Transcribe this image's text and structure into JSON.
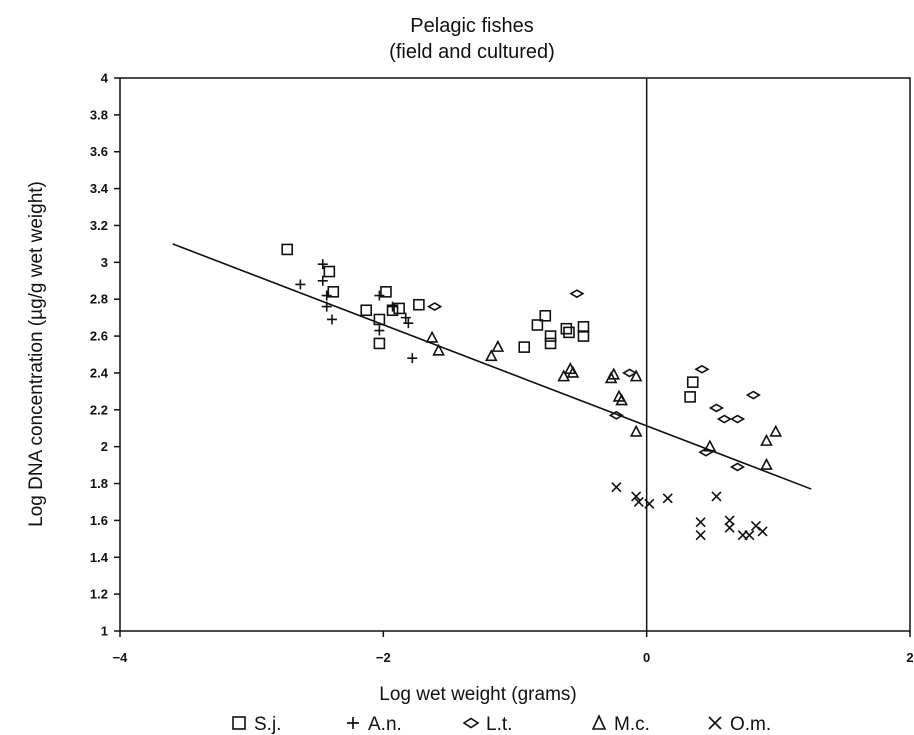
{
  "chart_data": {
    "type": "scatter",
    "title": [
      "Pelagic fishes",
      "(field and cultured)"
    ],
    "xlabel": "Log wet weight (grams)",
    "ylabel": "Log DNA concentration (µg/g wet weight)",
    "xlim": [
      -4,
      2
    ],
    "ylim": [
      1,
      4
    ],
    "xticks": [
      -4,
      -2,
      0,
      2
    ],
    "xtick_labels": [
      "−4",
      "−2",
      "0",
      "2"
    ],
    "yticks": [
      1,
      1.2,
      1.4,
      1.6,
      1.8,
      2,
      2.2,
      2.4,
      2.6,
      2.8,
      3,
      3.2,
      3.4,
      3.6,
      3.8,
      4
    ],
    "ytick_labels": [
      "1",
      "1.2",
      "1.4",
      "1.6",
      "1.8",
      "2",
      "2.2",
      "2.4",
      "2.6",
      "2.8",
      "3",
      "3.2",
      "3.4",
      "3.6",
      "3.8",
      "4"
    ],
    "grid": false,
    "legend_position": "bottom",
    "vertical_line_x": 0,
    "regression_line": {
      "x": [
        -3.6,
        1.25
      ],
      "y": [
        3.1,
        1.77
      ]
    },
    "series": [
      {
        "name": "S.j.",
        "marker": "square",
        "points": [
          [
            -2.73,
            3.07
          ],
          [
            -2.41,
            2.95
          ],
          [
            -2.38,
            2.84
          ],
          [
            -2.13,
            2.74
          ],
          [
            -2.03,
            2.69
          ],
          [
            -2.03,
            2.56
          ],
          [
            -1.98,
            2.84
          ],
          [
            -1.93,
            2.74
          ],
          [
            -1.88,
            2.75
          ],
          [
            -1.73,
            2.77
          ],
          [
            -0.93,
            2.54
          ],
          [
            -0.83,
            2.66
          ],
          [
            -0.77,
            2.71
          ],
          [
            -0.73,
            2.6
          ],
          [
            -0.73,
            2.56
          ],
          [
            -0.61,
            2.64
          ],
          [
            -0.59,
            2.62
          ],
          [
            -0.48,
            2.65
          ],
          [
            -0.48,
            2.6
          ],
          [
            0.33,
            2.27
          ],
          [
            0.35,
            2.35
          ]
        ]
      },
      {
        "name": "A.n.",
        "marker": "plus",
        "points": [
          [
            -2.63,
            2.88
          ],
          [
            -2.46,
            2.99
          ],
          [
            -2.46,
            2.9
          ],
          [
            -2.43,
            2.76
          ],
          [
            -2.43,
            2.82
          ],
          [
            -2.39,
            2.69
          ],
          [
            -2.03,
            2.82
          ],
          [
            -2.03,
            2.63
          ],
          [
            -1.93,
            2.76
          ],
          [
            -1.83,
            2.7
          ],
          [
            -1.81,
            2.67
          ],
          [
            -1.78,
            2.48
          ]
        ]
      },
      {
        "name": "L.t.",
        "marker": "diamond",
        "points": [
          [
            -1.61,
            2.76
          ],
          [
            -0.53,
            2.83
          ],
          [
            -0.23,
            2.17
          ],
          [
            -0.13,
            2.4
          ],
          [
            0.42,
            2.42
          ],
          [
            0.45,
            1.97
          ],
          [
            0.53,
            2.21
          ],
          [
            0.59,
            2.15
          ],
          [
            0.69,
            2.15
          ],
          [
            0.69,
            1.89
          ],
          [
            0.81,
            2.28
          ]
        ]
      },
      {
        "name": "M.c.",
        "marker": "triangle",
        "points": [
          [
            -1.63,
            2.59
          ],
          [
            -1.58,
            2.52
          ],
          [
            -1.18,
            2.49
          ],
          [
            -1.13,
            2.54
          ],
          [
            -0.63,
            2.38
          ],
          [
            -0.58,
            2.42
          ],
          [
            -0.56,
            2.4
          ],
          [
            -0.27,
            2.37
          ],
          [
            -0.25,
            2.39
          ],
          [
            -0.21,
            2.27
          ],
          [
            -0.19,
            2.25
          ],
          [
            -0.08,
            2.38
          ],
          [
            -0.08,
            2.08
          ],
          [
            0.48,
            2.0
          ],
          [
            0.91,
            2.03
          ],
          [
            0.91,
            1.9
          ],
          [
            0.98,
            2.08
          ]
        ]
      },
      {
        "name": "O.m.",
        "marker": "x",
        "points": [
          [
            -0.23,
            1.78
          ],
          [
            -0.08,
            1.73
          ],
          [
            -0.06,
            1.7
          ],
          [
            0.02,
            1.69
          ],
          [
            0.16,
            1.72
          ],
          [
            0.41,
            1.59
          ],
          [
            0.41,
            1.52
          ],
          [
            0.53,
            1.73
          ],
          [
            0.63,
            1.6
          ],
          [
            0.63,
            1.56
          ],
          [
            0.73,
            1.52
          ],
          [
            0.78,
            1.52
          ],
          [
            0.83,
            1.57
          ],
          [
            0.88,
            1.54
          ]
        ]
      }
    ]
  }
}
